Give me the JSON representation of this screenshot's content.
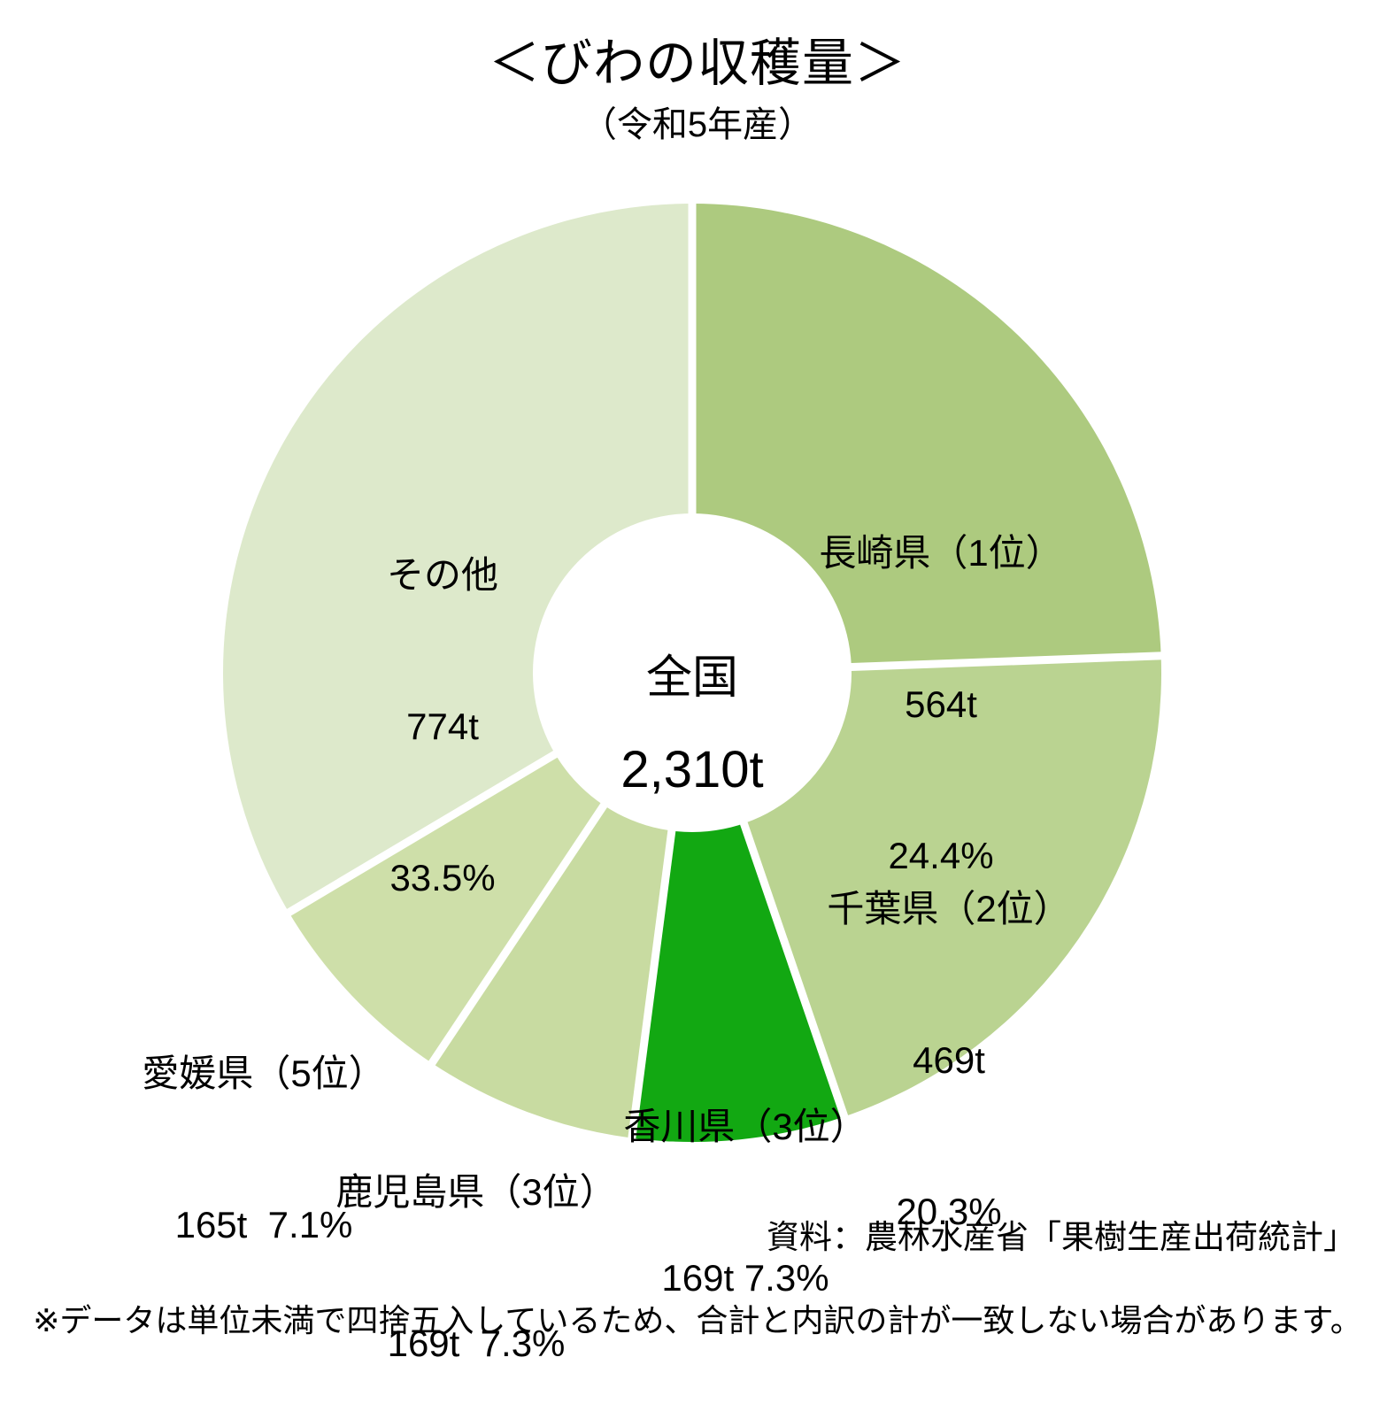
{
  "title": "＜びわの収穫量＞",
  "subtitle": "（令和5年産）",
  "center": {
    "region": "全国",
    "total": "2,310t"
  },
  "source": "資料：農林水産省「果樹生産出荷統計」",
  "note": "※データは単位未満で四捨五入しているため、合計と内訳の計が一致しない場合があります。",
  "chart_data": {
    "type": "pie",
    "donut": true,
    "title": "＜びわの収穫量＞（令和5年産）",
    "unit": "t",
    "total": {
      "label": "全国",
      "value_t": 2310,
      "display": "2,310t"
    },
    "start_angle": "top",
    "direction": "clockwise",
    "segments": [
      {
        "name": "長崎県",
        "rank": "1位",
        "value_t": 564,
        "percent": 24.4,
        "color": "#adca7f",
        "lines": [
          "長崎県（1位）",
          "564t",
          "24.4%"
        ]
      },
      {
        "name": "千葉県",
        "rank": "2位",
        "value_t": 469,
        "percent": 20.3,
        "color": "#bad391",
        "lines": [
          "千葉県（2位）",
          "469t",
          "20.3%"
        ]
      },
      {
        "name": "香川県",
        "rank": "3位",
        "value_t": 169,
        "percent": 7.3,
        "color": "#12a812",
        "lines": [
          "香川県（3位）",
          "169t 7.3%"
        ]
      },
      {
        "name": "鹿児島県",
        "rank": "3位",
        "value_t": 169,
        "percent": 7.3,
        "color": "#c8dba1",
        "lines": [
          "鹿児島県（3位）",
          "169t  7.3%"
        ]
      },
      {
        "name": "愛媛県",
        "rank": "5位",
        "value_t": 165,
        "percent": 7.1,
        "color": "#cedfa9",
        "lines": [
          "愛媛県（5位）",
          "165t  7.1%"
        ]
      },
      {
        "name": "その他",
        "rank": "",
        "value_t": 774,
        "percent": 33.5,
        "color": "#dde9cb",
        "lines": [
          "その他",
          "774t",
          "33.5%"
        ]
      }
    ]
  }
}
